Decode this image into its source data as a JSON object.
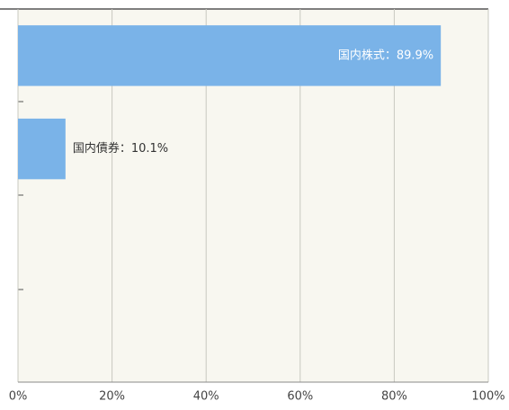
{
  "chart_data": {
    "type": "barh",
    "values": [
      89.9,
      10.1,
      null,
      null
    ],
    "value_labels": [
      "国内株式：89.9%",
      "国内債券：10.1%",
      null,
      null
    ],
    "color": "#7ab3e8",
    "xlim": [
      0,
      100
    ],
    "xticks": [
      {
        "value": 0,
        "label": "0%"
      },
      {
        "value": 20,
        "label": "20%"
      },
      {
        "value": 40,
        "label": "40%"
      },
      {
        "value": 60,
        "label": "60%"
      },
      {
        "value": 80,
        "label": "80%"
      },
      {
        "value": 100,
        "label": "100%"
      }
    ],
    "grid": true
  }
}
